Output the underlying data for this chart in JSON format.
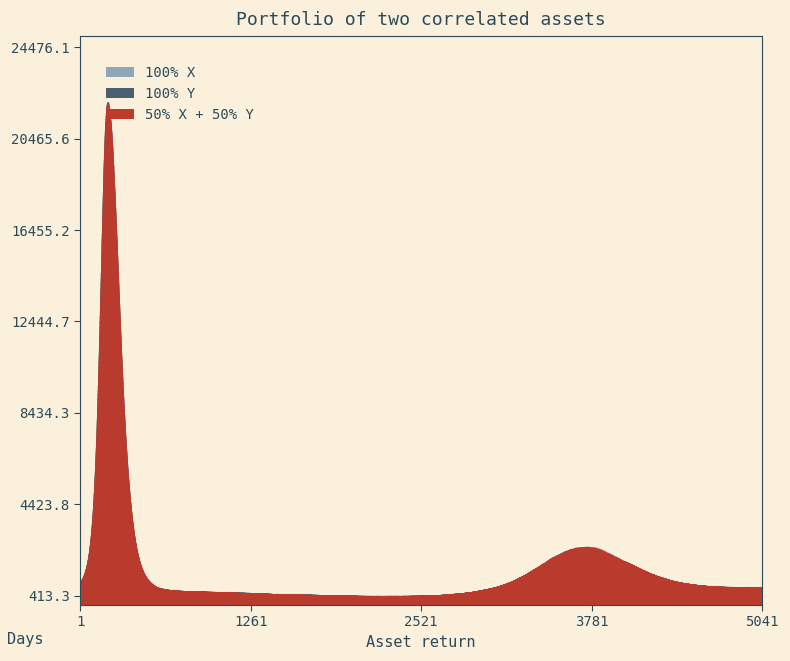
{
  "title": "Portfolio of two correlated assets",
  "xlabel": "Asset return",
  "ylabel": "Days",
  "x_ticks": [
    1,
    1261,
    2521,
    3781,
    5041
  ],
  "y_ticks": [
    413.3,
    4423.8,
    8434.3,
    12444.7,
    16455.2,
    20465.6,
    24476.1
  ],
  "background_color": "#FAF0DC",
  "color_X": "#8fa8b8",
  "color_Y": "#4a6070",
  "color_portfolio": "#c0392b",
  "legend_labels": [
    "100% X",
    "100% Y",
    "50% X + 50% Y"
  ],
  "n_points": 5041,
  "seed": 42,
  "title_fontsize": 13,
  "label_fontsize": 11,
  "tick_fontsize": 10
}
